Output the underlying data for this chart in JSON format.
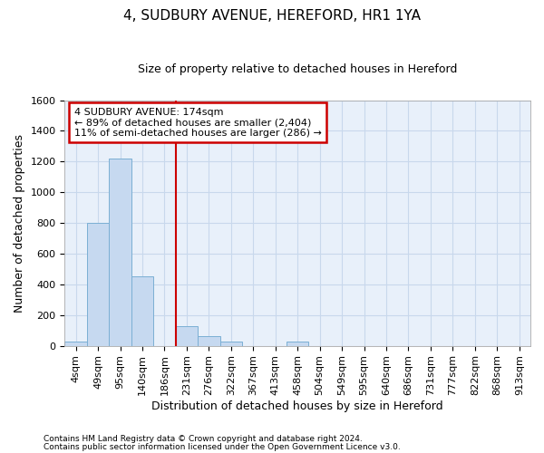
{
  "title": "4, SUDBURY AVENUE, HEREFORD, HR1 1YA",
  "subtitle": "Size of property relative to detached houses in Hereford",
  "xlabel": "Distribution of detached houses by size in Hereford",
  "ylabel": "Number of detached properties",
  "footnote1": "Contains HM Land Registry data © Crown copyright and database right 2024.",
  "footnote2": "Contains public sector information licensed under the Open Government Licence v3.0.",
  "bar_labels": [
    "4sqm",
    "49sqm",
    "95sqm",
    "140sqm",
    "186sqm",
    "231sqm",
    "276sqm",
    "322sqm",
    "367sqm",
    "413sqm",
    "458sqm",
    "504sqm",
    "549sqm",
    "595sqm",
    "640sqm",
    "686sqm",
    "731sqm",
    "777sqm",
    "822sqm",
    "868sqm",
    "913sqm"
  ],
  "bar_values": [
    25,
    800,
    1220,
    450,
    0,
    130,
    60,
    25,
    0,
    0,
    25,
    0,
    0,
    0,
    0,
    0,
    0,
    0,
    0,
    0,
    0
  ],
  "bar_color": "#c6d9f0",
  "bar_edge_color": "#7bafd4",
  "grid_color": "#c8d8ec",
  "background_color": "#e8f0fa",
  "annotation_line1": "4 SUDBURY AVENUE: 174sqm",
  "annotation_line2": "← 89% of detached houses are smaller (2,404)",
  "annotation_line3": "11% of semi-detached houses are larger (286) →",
  "annotation_box_color": "#ffffff",
  "annotation_border_color": "#cc0000",
  "vline_x": 4.5,
  "vline_color": "#cc0000",
  "ylim": [
    0,
    1600
  ],
  "yticks": [
    0,
    200,
    400,
    600,
    800,
    1000,
    1200,
    1400,
    1600
  ],
  "title_fontsize": 11,
  "subtitle_fontsize": 9,
  "axis_label_fontsize": 9,
  "tick_fontsize": 8,
  "annotation_fontsize": 8
}
